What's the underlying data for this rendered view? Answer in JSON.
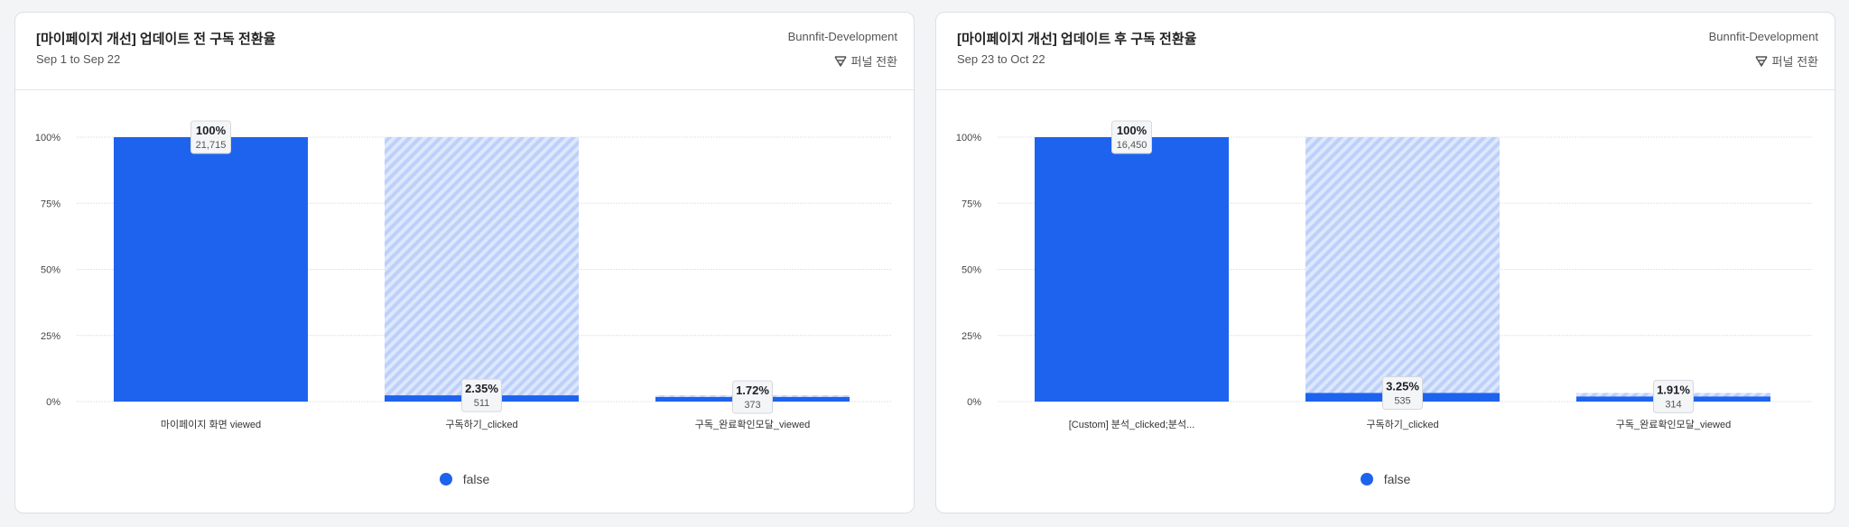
{
  "colors": {
    "bar": "#1e63ee",
    "hatch": "#bcd0fa",
    "grid": "#e2e4e8"
  },
  "chart_data": [
    {
      "type": "bar",
      "title": "[마이페이지 개선] 업데이트 전 구독 전환율",
      "subtitle": "Sep 1 to Sep 22",
      "project": "Bunnfit-Development",
      "funnel_label": "퍼널 전환",
      "categories": [
        "마이페이지 화면 viewed",
        "구독하기_clicked",
        "구독_완료확인모달_viewed"
      ],
      "values": [
        100,
        2.35,
        1.72
      ],
      "pct_labels": [
        "100%",
        "2.35%",
        "1.72%"
      ],
      "counts": [
        "21,715",
        "511",
        "373"
      ],
      "yticks": [
        "0%",
        "25%",
        "50%",
        "75%",
        "100%"
      ],
      "ylim": [
        0,
        100
      ],
      "legend": [
        "false"
      ],
      "legend_position": "bottom",
      "grid": true
    },
    {
      "type": "bar",
      "title": "[마이페이지 개선] 업데이트 후 구독 전환율",
      "subtitle": "Sep 23 to Oct 22",
      "project": "Bunnfit-Development",
      "funnel_label": "퍼널 전환",
      "categories": [
        "[Custom] 분석_clicked;분석...",
        "구독하기_clicked",
        "구독_완료확인모달_viewed"
      ],
      "values": [
        100,
        3.25,
        1.91
      ],
      "pct_labels": [
        "100%",
        "3.25%",
        "1.91%"
      ],
      "counts": [
        "16,450",
        "535",
        "314"
      ],
      "yticks": [
        "0%",
        "25%",
        "50%",
        "75%",
        "100%"
      ],
      "ylim": [
        0,
        100
      ],
      "legend": [
        "false"
      ],
      "legend_position": "bottom",
      "grid": true
    }
  ]
}
